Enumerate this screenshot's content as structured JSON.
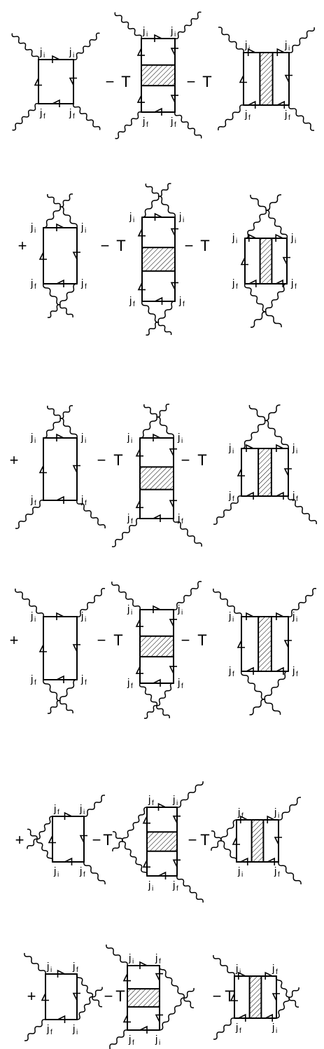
{
  "operators": {
    "plus": "+",
    "minus": "−",
    "T": "T"
  },
  "labels": {
    "j_base": "j",
    "sub_i": "i",
    "sub_f": "f"
  },
  "rows": [
    {
      "id": "row-1",
      "prefix": "",
      "photons": "corners"
    },
    {
      "id": "row-2",
      "prefix": "+",
      "photons": "top-bottom-loops"
    },
    {
      "id": "row-3",
      "prefix": "+",
      "photons": "top-loop"
    },
    {
      "id": "row-4",
      "prefix": "+",
      "photons": "bottom-loop"
    },
    {
      "id": "row-5",
      "prefix": "+",
      "photons": "left-loop"
    },
    {
      "id": "row-6",
      "prefix": "+",
      "photons": "right-loop"
    }
  ],
  "line_color": "#000000",
  "hatch_color": "#000000"
}
